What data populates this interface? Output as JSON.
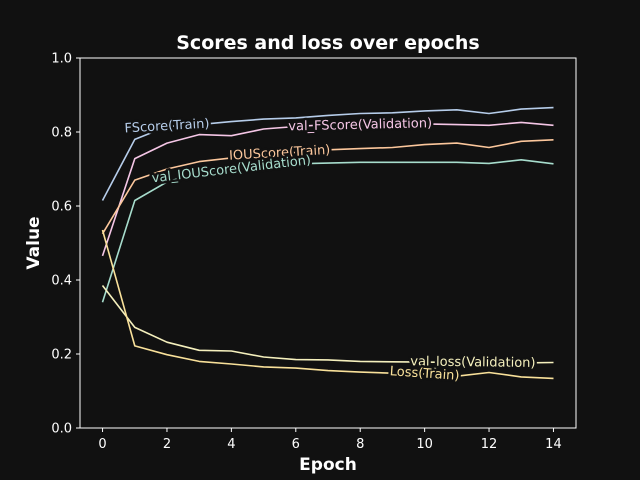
{
  "chart_data": {
    "type": "line",
    "title": "Scores and loss over epochs",
    "xlabel": "Epoch",
    "ylabel": "Value",
    "xlim": [
      -0.7,
      14.7
    ],
    "ylim": [
      0.0,
      1.0
    ],
    "xticks": [
      0,
      2,
      4,
      6,
      8,
      10,
      12,
      14
    ],
    "yticks": [
      0.0,
      0.2,
      0.4,
      0.6,
      0.8,
      1.0
    ],
    "grid": false,
    "legend": "inline labels on lines",
    "x": [
      0,
      1,
      2,
      3,
      4,
      5,
      6,
      7,
      8,
      9,
      10,
      11,
      12,
      13,
      14
    ],
    "series": [
      {
        "name": "FScore(Train)",
        "color": "#b6cdea",
        "label_at": 2.0,
        "values": [
          0.615,
          0.78,
          0.815,
          0.82,
          0.828,
          0.835,
          0.838,
          0.845,
          0.85,
          0.852,
          0.857,
          0.86,
          0.85,
          0.862,
          0.866
        ]
      },
      {
        "name": "val_FScore(Validation)",
        "color": "#f5c6e6",
        "label_at": 8.0,
        "values": [
          0.465,
          0.728,
          0.77,
          0.793,
          0.79,
          0.808,
          0.815,
          0.82,
          0.818,
          0.82,
          0.822,
          0.82,
          0.818,
          0.826,
          0.818
        ]
      },
      {
        "name": "IOUScore(Train)",
        "color": "#fcc79c",
        "label_at": 5.5,
        "values": [
          0.525,
          0.67,
          0.7,
          0.72,
          0.73,
          0.74,
          0.745,
          0.752,
          0.755,
          0.758,
          0.766,
          0.77,
          0.758,
          0.775,
          0.779
        ]
      },
      {
        "name": "val_IOUScore(Validation)",
        "color": "#a7ddcd",
        "label_at": 4.0,
        "values": [
          0.34,
          0.615,
          0.665,
          0.69,
          0.698,
          0.708,
          0.714,
          0.716,
          0.718,
          0.718,
          0.718,
          0.718,
          0.715,
          0.725,
          0.714
        ]
      },
      {
        "name": "val_loss(Validation)",
        "color": "#f5f0bd",
        "label_at": 11.5,
        "values": [
          0.385,
          0.272,
          0.232,
          0.21,
          0.208,
          0.192,
          0.185,
          0.184,
          0.18,
          0.179,
          0.178,
          0.177,
          0.176,
          0.176,
          0.177
        ]
      },
      {
        "name": "Loss(Train)",
        "color": "#f9e19a",
        "label_at": 10.0,
        "values": [
          0.535,
          0.222,
          0.198,
          0.18,
          0.173,
          0.165,
          0.162,
          0.155,
          0.151,
          0.148,
          0.146,
          0.14,
          0.15,
          0.138,
          0.134
        ]
      }
    ]
  }
}
